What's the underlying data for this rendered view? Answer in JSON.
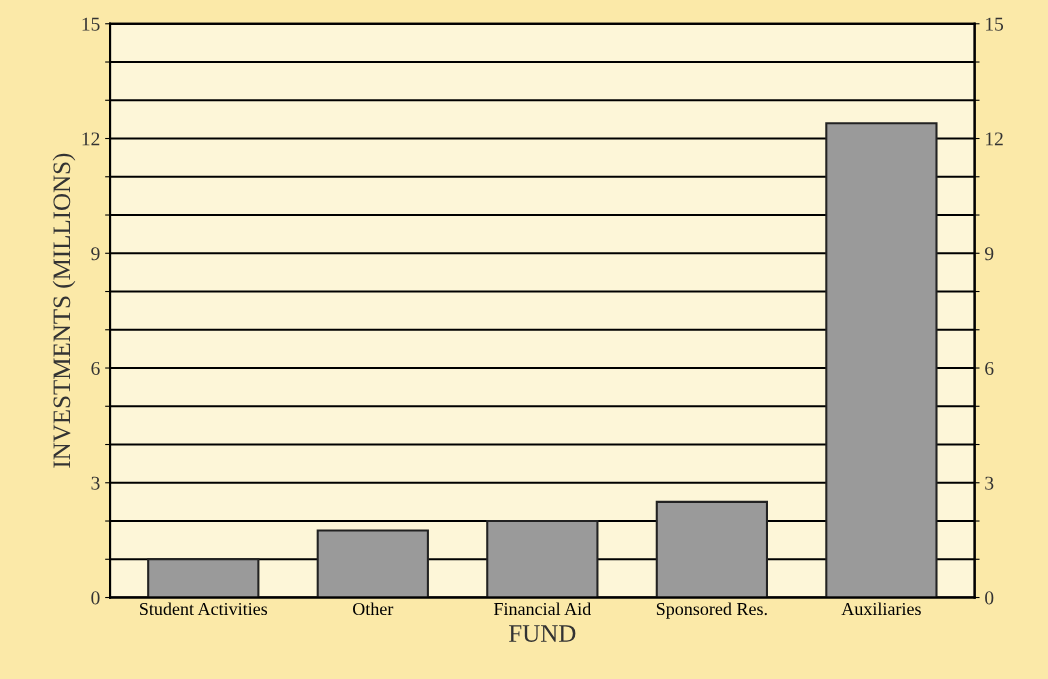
{
  "chart_data": {
    "type": "bar",
    "xlabel": "FUND",
    "ylabel": "INVESTMENTS (MILLIONS)",
    "categories": [
      "Student Activities",
      "Other",
      "Financial Aid",
      "Sponsored Res.",
      "Auxiliaries"
    ],
    "values": [
      1.0,
      1.75,
      2.0,
      2.5,
      12.4
    ],
    "color": "#9a9a9a",
    "ylim": [
      0,
      15
    ],
    "yticks": [
      0,
      {
        "value": 1,
        "label": null
      },
      {
        "value": 2,
        "label": null
      },
      3,
      {
        "value": 4,
        "label": null
      },
      {
        "value": 5,
        "label": null
      },
      6,
      {
        "value": 7,
        "label": null
      },
      {
        "value": 8,
        "label": null
      },
      9,
      {
        "value": 10,
        "label": null
      },
      {
        "value": 11,
        "label": null
      },
      12,
      {
        "value": 13,
        "label": null
      },
      {
        "value": 14,
        "label": null
      },
      15
    ],
    "y2lim": [
      0,
      15
    ],
    "y2ticks": [
      0,
      {
        "value": 1,
        "label": null
      },
      {
        "value": 2,
        "label": null
      },
      3,
      {
        "value": 4,
        "label": null
      },
      {
        "value": 5,
        "label": null
      },
      6,
      {
        "value": 7,
        "label": null
      },
      {
        "value": 8,
        "label": null
      },
      9,
      {
        "value": 10,
        "label": null
      },
      {
        "value": 11,
        "label": null
      },
      12,
      {
        "value": 13,
        "label": null
      },
      {
        "value": 14,
        "label": null
      },
      15
    ],
    "grid": "y"
  }
}
